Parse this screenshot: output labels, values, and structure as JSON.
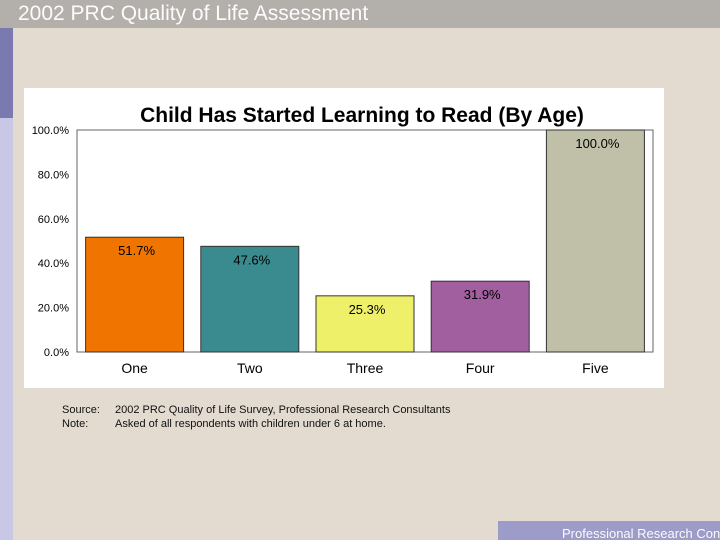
{
  "header": {
    "title": "2002 PRC Quality of Life Assessment"
  },
  "chart_data": {
    "type": "bar",
    "title": "Child Has Started Learning to Read (By Age)",
    "xlabel": "",
    "ylabel": "",
    "categories": [
      "One",
      "Two",
      "Three",
      "Four",
      "Five"
    ],
    "values": [
      51.7,
      47.6,
      25.3,
      31.9,
      100.0
    ],
    "data_labels": [
      "51.7%",
      "47.6%",
      "25.3%",
      "31.9%",
      "100.0%"
    ],
    "bar_colors": [
      "#f07400",
      "#3a8b8f",
      "#eef06a",
      "#a15fa0",
      "#c0c0a8"
    ],
    "ylim": [
      0,
      100
    ],
    "yticks": [
      0,
      20,
      40,
      60,
      80,
      100
    ],
    "ytick_labels": [
      "0.0%",
      "20.0%",
      "40.0%",
      "60.0%",
      "80.0%",
      "100.0%"
    ],
    "grid": false,
    "legend": "none"
  },
  "notes": {
    "source_label": "Source:",
    "source_text": "2002 PRC Quality of Life Survey, Professional Research Consultants",
    "note_label": "Note:",
    "note_text": "Asked of all respondents with children under 6 at home."
  },
  "footer": {
    "text": "Professional Research Consultants"
  }
}
